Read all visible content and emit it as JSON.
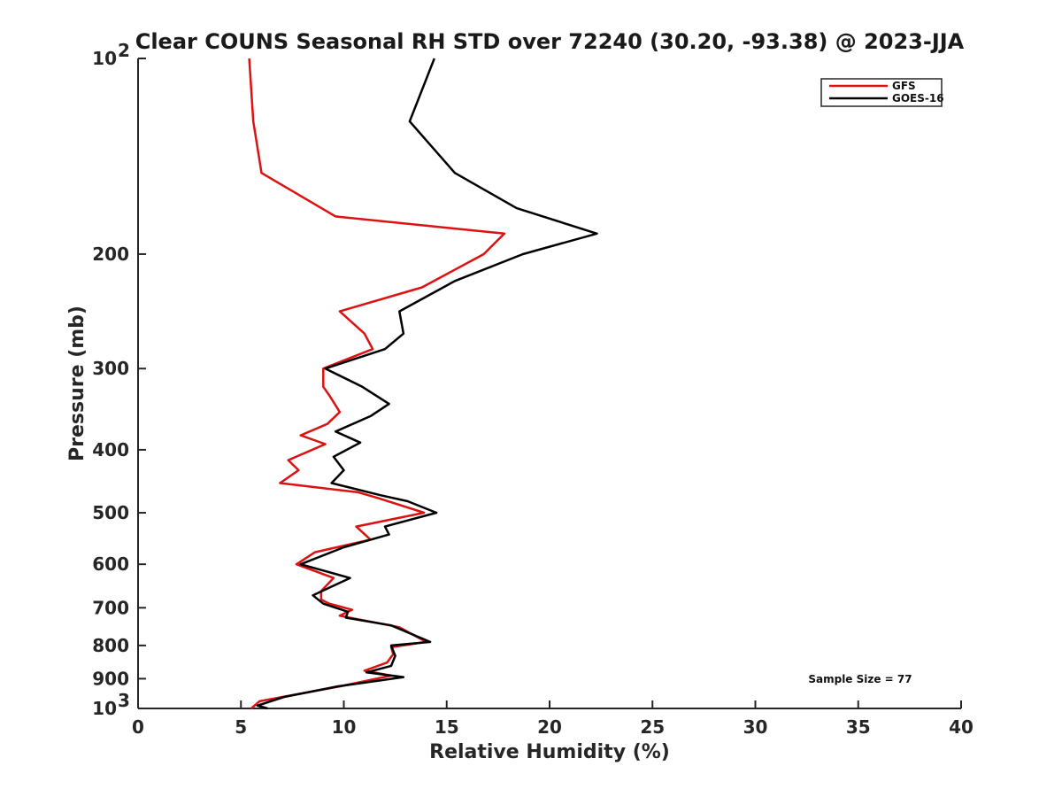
{
  "chart_data": {
    "type": "line",
    "title": "Clear COUNS Seasonal RH STD over 72240 (30.20, -93.38) @ 2023-JJA",
    "xlabel": "Relative Humidity (%)",
    "ylabel": "Pressure (mb)",
    "xlim": [
      0,
      40
    ],
    "ylim": [
      100,
      1000
    ],
    "yscale": "log",
    "y_reversed": true,
    "x_ticks": [
      0,
      5,
      10,
      15,
      20,
      25,
      30,
      35,
      40
    ],
    "x_tick_labels": [
      "0",
      "5",
      "10",
      "15",
      "20",
      "25",
      "30",
      "35",
      "40"
    ],
    "y_ticks": [
      {
        "value": 100,
        "base": "10",
        "exp": "2"
      },
      {
        "value": 200,
        "label": "200"
      },
      {
        "value": 300,
        "label": "300"
      },
      {
        "value": 400,
        "label": "400"
      },
      {
        "value": 500,
        "label": "500"
      },
      {
        "value": 600,
        "label": "600"
      },
      {
        "value": 700,
        "label": "700"
      },
      {
        "value": 800,
        "label": "800"
      },
      {
        "value": 900,
        "label": "900"
      },
      {
        "value": 1000,
        "base": "10",
        "exp": "3"
      }
    ],
    "legend_position": "top-right",
    "annotation": "Sample Size = 77",
    "series": [
      {
        "name": "GFS",
        "color": "#dd1111",
        "points": [
          [
            5.4,
            100
          ],
          [
            5.6,
            125
          ],
          [
            6.0,
            150
          ],
          [
            9.6,
            175
          ],
          [
            17.8,
            186
          ],
          [
            16.8,
            200
          ],
          [
            13.8,
            225
          ],
          [
            9.8,
            245
          ],
          [
            11.0,
            265
          ],
          [
            11.4,
            280
          ],
          [
            9.0,
            300
          ],
          [
            9.0,
            320
          ],
          [
            9.3,
            330
          ],
          [
            9.8,
            350
          ],
          [
            9.2,
            365
          ],
          [
            7.9,
            380
          ],
          [
            9.1,
            392
          ],
          [
            7.3,
            415
          ],
          [
            7.8,
            430
          ],
          [
            6.9,
            450
          ],
          [
            10.7,
            465
          ],
          [
            11.7,
            475
          ],
          [
            13.9,
            500
          ],
          [
            10.6,
            525
          ],
          [
            11.3,
            550
          ],
          [
            8.6,
            575
          ],
          [
            7.7,
            600
          ],
          [
            9.5,
            630
          ],
          [
            8.9,
            660
          ],
          [
            8.9,
            680
          ],
          [
            9.3,
            690
          ],
          [
            10.4,
            705
          ],
          [
            9.8,
            720
          ],
          [
            12.7,
            750
          ],
          [
            14.0,
            790
          ],
          [
            12.3,
            805
          ],
          [
            12.4,
            825
          ],
          [
            12.1,
            850
          ],
          [
            11.0,
            875
          ],
          [
            12.3,
            890
          ],
          [
            9.8,
            925
          ],
          [
            5.9,
            975
          ],
          [
            5.5,
            1000
          ]
        ]
      },
      {
        "name": "GOES-16",
        "color": "#000000",
        "points": [
          [
            14.4,
            100
          ],
          [
            13.2,
            125
          ],
          [
            15.4,
            150
          ],
          [
            18.4,
            170
          ],
          [
            22.3,
            186
          ],
          [
            18.7,
            200
          ],
          [
            15.4,
            220
          ],
          [
            12.7,
            245
          ],
          [
            12.9,
            265
          ],
          [
            12.0,
            280
          ],
          [
            9.1,
            300
          ],
          [
            10.9,
            320
          ],
          [
            12.2,
            340
          ],
          [
            11.3,
            355
          ],
          [
            9.6,
            375
          ],
          [
            10.8,
            390
          ],
          [
            9.5,
            410
          ],
          [
            10.0,
            430
          ],
          [
            9.4,
            450
          ],
          [
            11.8,
            470
          ],
          [
            13.1,
            480
          ],
          [
            14.5,
            500
          ],
          [
            12.0,
            525
          ],
          [
            12.2,
            540
          ],
          [
            10.0,
            565
          ],
          [
            7.9,
            600
          ],
          [
            10.3,
            630
          ],
          [
            8.5,
            670
          ],
          [
            9.0,
            690
          ],
          [
            10.2,
            710
          ],
          [
            10.1,
            725
          ],
          [
            12.3,
            745
          ],
          [
            14.2,
            790
          ],
          [
            12.3,
            800
          ],
          [
            12.5,
            830
          ],
          [
            12.3,
            860
          ],
          [
            11.1,
            880
          ],
          [
            12.9,
            895
          ],
          [
            9.7,
            925
          ],
          [
            7.1,
            960
          ],
          [
            5.8,
            990
          ],
          [
            6.3,
            1000
          ]
        ]
      }
    ]
  }
}
